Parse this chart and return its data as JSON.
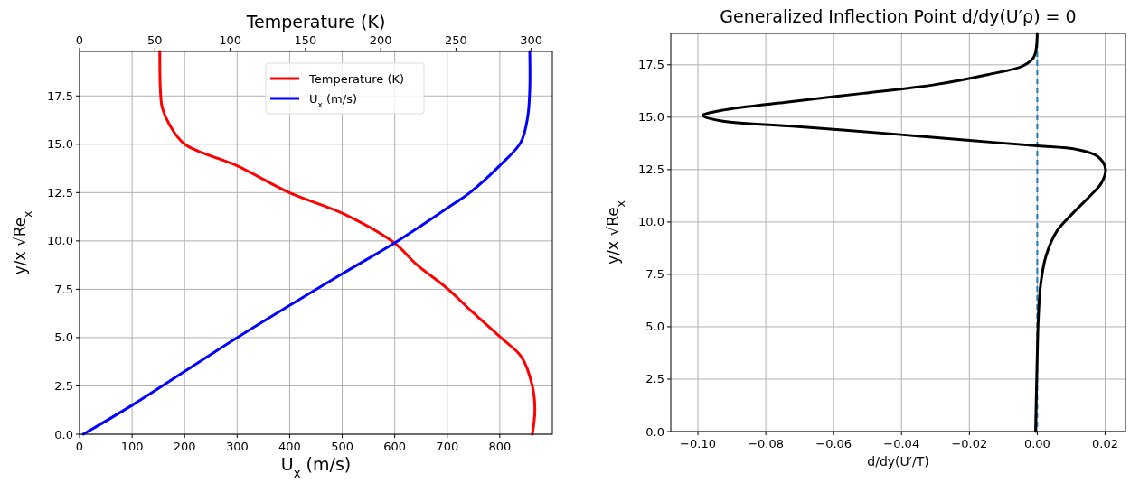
{
  "chart_data": [
    {
      "type": "line",
      "xlabel": "U$_{x}$ (m/s)",
      "x2label": "Temperature (K)",
      "ylabel": "y/x √Re$_{x}$",
      "xlim": [
        0,
        900
      ],
      "xticks": [
        0,
        100,
        200,
        300,
        400,
        500,
        600,
        700,
        800
      ],
      "x2lim": [
        0,
        314
      ],
      "x2ticks": [
        0,
        50,
        100,
        150,
        200,
        250,
        300
      ],
      "ylim": [
        0,
        19.8
      ],
      "yticks": [
        {
          "value": 0,
          "label": "0.0"
        },
        {
          "value": 2.5,
          "label": "2.5"
        },
        {
          "value": 5,
          "label": "5.0"
        },
        {
          "value": 7.5,
          "label": "7.5"
        },
        {
          "value": 10,
          "label": "10.0"
        },
        {
          "value": 12.5,
          "label": "12.5"
        },
        {
          "value": 15,
          "label": "15.0"
        },
        {
          "value": 17.5,
          "label": "17.5"
        }
      ],
      "grid": true,
      "legend": "top",
      "line_style": "solid",
      "series": [
        {
          "name": "Temperature (K)",
          "color": "#ff0000",
          "axis": "x2",
          "x": [
            300.7,
            302.4,
            300.7,
            293.5,
            279.8,
            259.8,
            244.8,
            223.6,
            209,
            175.4,
            139.3,
            104.3,
            69.9,
            59.8,
            54.9,
            53.7,
            53.3
          ],
          "values": [
            0,
            1.24,
            2.5,
            4.0,
            5.0,
            6.4,
            7.5,
            8.8,
            9.9,
            11.4,
            12.5,
            13.9,
            15.0,
            16.0,
            16.9,
            17.8,
            19.8
          ]
        },
        {
          "name": "U$_{x}$ (m/s)",
          "color": "#0000ff",
          "x": [
            7,
            100,
            300,
            500,
            600,
            700,
            743,
            800,
            840,
            853,
            857,
            857
          ],
          "values": [
            0,
            1.5,
            5.0,
            8.3,
            9.9,
            11.7,
            12.5,
            13.9,
            15.1,
            16.4,
            17.8,
            19.8
          ]
        }
      ]
    },
    {
      "type": "line",
      "title": "Generalized Inflection Point d/dy(U′ρ) = 0",
      "xlabel": "d/dy(U′/T)",
      "ylabel": "y/x √Re$_{x}$",
      "xlim": [
        -0.108,
        0.026
      ],
      "xticks": [
        {
          "value": -0.1,
          "label": "−0.10"
        },
        {
          "value": -0.08,
          "label": "−0.08"
        },
        {
          "value": -0.06,
          "label": "−0.06"
        },
        {
          "value": -0.04,
          "label": "−0.04"
        },
        {
          "value": -0.02,
          "label": "−0.02"
        },
        {
          "value": 0,
          "label": "0.00"
        },
        {
          "value": 0.02,
          "label": "0.02"
        }
      ],
      "ylim": [
        0,
        19
      ],
      "yticks": [
        {
          "value": 0,
          "label": "0.0"
        },
        {
          "value": 2.5,
          "label": "2.5"
        },
        {
          "value": 5,
          "label": "5.0"
        },
        {
          "value": 7.5,
          "label": "7.5"
        },
        {
          "value": 10,
          "label": "10.0"
        },
        {
          "value": 12.5,
          "label": "12.5"
        },
        {
          "value": 15,
          "label": "15.0"
        },
        {
          "value": 17.5,
          "label": "17.5"
        }
      ],
      "grid": true,
      "line_style": "solid",
      "ref_lines": [
        {
          "axis": "x",
          "value": 0,
          "color": "#1f77b4",
          "line_style": "dashed"
        }
      ],
      "series": [
        {
          "color": "#000000",
          "x": [
            -0.0005,
            0,
            0.0003,
            0.001,
            0.0026,
            0.0058,
            0.0105,
            0.0157,
            0.0189,
            0.0201,
            0.0178,
            0.0115,
            0,
            -0.0199,
            -0.041,
            -0.0723,
            -0.093,
            -0.0986,
            -0.093,
            -0.0723,
            -0.0513,
            -0.0304,
            -0.0147,
            -0.0042,
            -0.001,
            0
          ],
          "values": [
            0,
            3.64,
            5.34,
            7.03,
            8.39,
            9.57,
            10.42,
            11.27,
            11.86,
            12.54,
            13.13,
            13.47,
            13.64,
            13.89,
            14.18,
            14.57,
            14.82,
            15.08,
            15.33,
            15.75,
            16.14,
            16.55,
            17.03,
            17.45,
            17.87,
            19.0
          ]
        }
      ]
    }
  ]
}
